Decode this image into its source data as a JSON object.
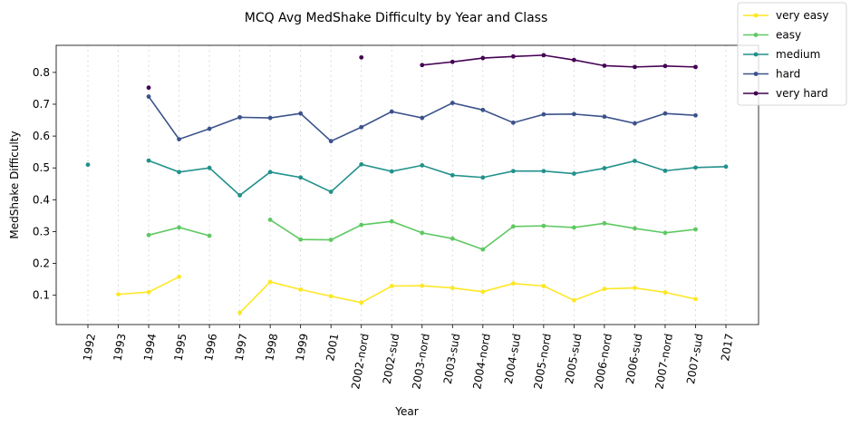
{
  "chart_data": {
    "type": "line",
    "title": "MCQ Avg MedShake Difficulty by Year and Class",
    "xlabel": "Year",
    "ylabel": "MedShake Difficulty",
    "categories": [
      "1992",
      "1993",
      "1994",
      "1995",
      "1996",
      "1997",
      "1998",
      "1999",
      "2001",
      "2002-nord",
      "2002-sud",
      "2003-nord",
      "2003-sud",
      "2004-nord",
      "2004-sud",
      "2005-nord",
      "2005-sud",
      "2006-nord",
      "2006-sud",
      "2007-nord",
      "2007-sud",
      "2017"
    ],
    "ylim": [
      0.008,
      0.885
    ],
    "yticks": [
      0.1,
      0.2,
      0.3,
      0.4,
      0.5,
      0.6,
      0.7,
      0.8
    ],
    "ytick_labels": [
      "0.1",
      "0.2",
      "0.3",
      "0.4",
      "0.5",
      "0.6",
      "0.7",
      "0.8"
    ],
    "grid": "vertical dotted",
    "legend": "top-right",
    "series": [
      {
        "name": "very easy",
        "color": "#fde725",
        "values": [
          null,
          0.103,
          0.11,
          0.158,
          null,
          0.045,
          0.142,
          0.118,
          0.097,
          0.077,
          0.129,
          0.13,
          0.123,
          0.111,
          0.137,
          0.129,
          0.084,
          0.12,
          0.123,
          0.109,
          0.088,
          null
        ]
      },
      {
        "name": "easy",
        "color": "#5ec962",
        "values": [
          null,
          null,
          0.289,
          0.313,
          0.287,
          null,
          0.337,
          0.275,
          0.274,
          0.321,
          0.332,
          0.296,
          0.278,
          0.244,
          0.316,
          0.318,
          0.313,
          0.326,
          0.31,
          0.296,
          0.307,
          null
        ]
      },
      {
        "name": "medium",
        "color": "#21918c",
        "values": [
          0.51,
          null,
          0.523,
          0.487,
          0.5,
          0.414,
          0.487,
          0.47,
          0.425,
          0.511,
          0.489,
          0.508,
          0.477,
          0.47,
          0.49,
          0.49,
          0.482,
          0.499,
          0.522,
          0.491,
          0.501,
          0.504
        ]
      },
      {
        "name": "hard",
        "color": "#3b528b",
        "values": [
          null,
          null,
          0.724,
          0.59,
          0.623,
          0.659,
          0.657,
          0.671,
          0.584,
          0.628,
          0.677,
          0.657,
          0.704,
          0.682,
          0.642,
          0.668,
          0.669,
          0.661,
          0.64,
          0.671,
          0.665,
          null
        ]
      },
      {
        "name": "very hard",
        "color": "#440154",
        "values": [
          null,
          null,
          0.752,
          null,
          null,
          null,
          null,
          null,
          null,
          0.847,
          null,
          0.823,
          0.833,
          0.845,
          0.85,
          0.854,
          0.839,
          0.821,
          0.817,
          0.82,
          0.817,
          null
        ]
      }
    ]
  }
}
